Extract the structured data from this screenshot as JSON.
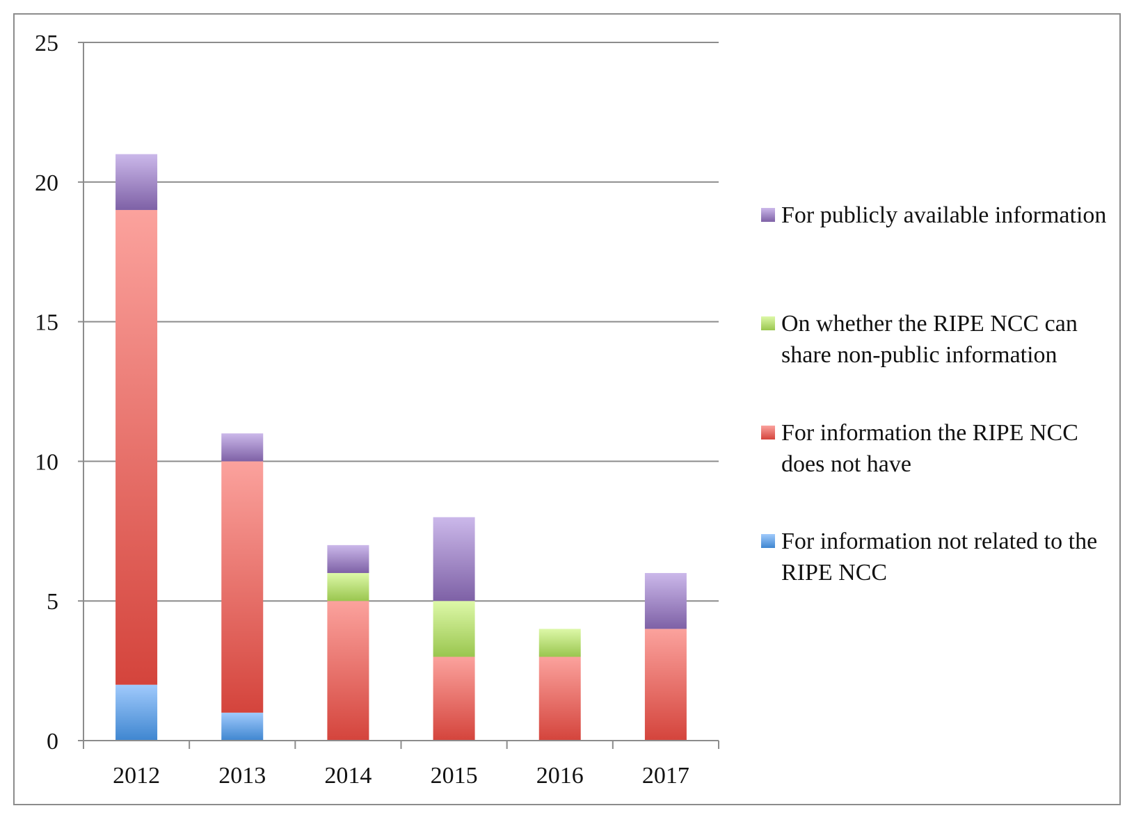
{
  "chart_data": {
    "type": "bar",
    "stacked": true,
    "categories": [
      "2012",
      "2013",
      "2014",
      "2015",
      "2016",
      "2017"
    ],
    "ylim": [
      0,
      25
    ],
    "yticks": [
      0,
      5,
      10,
      15,
      20,
      25
    ],
    "grid": true,
    "legend_position": "right",
    "series": [
      {
        "name": "For information not related to the RIPE NCC",
        "values": [
          2,
          1,
          0,
          0,
          0,
          0
        ],
        "color_top": "#a0cafc",
        "color_bottom": "#3f86d0"
      },
      {
        "name": "For information the RIPE NCC does not have",
        "values": [
          17,
          9,
          5,
          3,
          3,
          4
        ],
        "color_top": "#fba29d",
        "color_bottom": "#d4443c"
      },
      {
        "name": "On whether the RIPE NCC can share non-public information",
        "values": [
          0,
          0,
          1,
          2,
          1,
          0
        ],
        "color_top": "#ddf8a8",
        "color_bottom": "#9ac64f"
      },
      {
        "name": "For publicly available information",
        "values": [
          2,
          1,
          1,
          3,
          0,
          2
        ],
        "color_top": "#cbb8ea",
        "color_bottom": "#7e61a6"
      }
    ],
    "legend_order": [
      3,
      2,
      1,
      0
    ]
  }
}
